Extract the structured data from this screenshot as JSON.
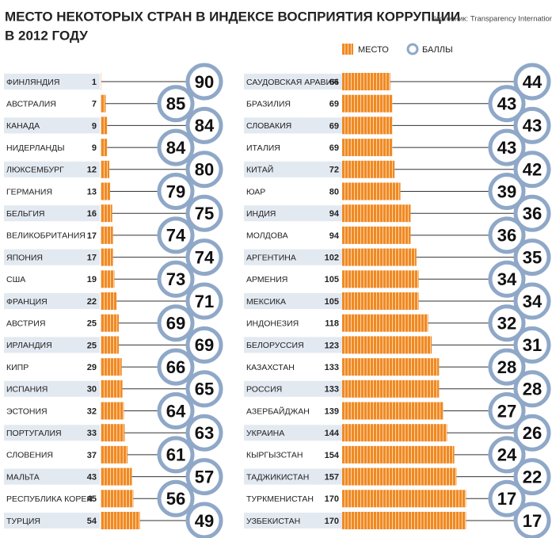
{
  "chart_data": {
    "type": "bar",
    "title": [
      "МЕСТО НЕКОТОРЫХ СТРАН В ИНДЕКСЕ ВОСПРИЯТИЯ КОРРУПЦИИ",
      "В 2012 ГОДУ"
    ],
    "source": "Источник: Transparency International",
    "categories": [
      "ФИНЛЯНДИЯ",
      "АВСТРАЛИЯ",
      "КАНАДА",
      "НИДЕРЛАНДЫ",
      "ЛЮКСЕМБУРГ",
      "ГЕРМАНИЯ",
      "БЕЛЬГИЯ",
      "ВЕЛИКОБРИТАНИЯ",
      "ЯПОНИЯ",
      "США",
      "ФРАНЦИЯ",
      "АВСТРИЯ",
      "ИРЛАНДИЯ",
      "КИПР",
      "ИСПАНИЯ",
      "ЭСТОНИЯ",
      "ПОРТУГАЛИЯ",
      "СЛОВЕНИЯ",
      "МАЛЬТА",
      "РЕСПУБЛИКА КОРЕЯ",
      "ТУРЦИЯ",
      "САУДОВСКАЯ АРАВИЯ",
      "БРАЗИЛИЯ",
      "СЛОВАКИЯ",
      "ИТАЛИЯ",
      "КИТАЙ",
      "ЮАР",
      "ИНДИЯ",
      "МОЛДОВА",
      "АРГЕНТИНА",
      "АРМЕНИЯ",
      "МЕКСИКА",
      "ИНДОНЕЗИЯ",
      "БЕЛОРУССИЯ",
      "КАЗАХСТАН",
      "РОССИЯ",
      "АЗЕРБАЙДЖАН",
      "УКРАИНА",
      "КЫРГЫЗСТАН",
      "ТАДЖИКИСТАН",
      "ТУРКМЕНИСТАН",
      "УЗБЕКИСТАН"
    ],
    "series": [
      {
        "name": "МЕСТО",
        "color": "#f08a24",
        "values": [
          1,
          7,
          9,
          9,
          12,
          13,
          16,
          17,
          17,
          19,
          22,
          25,
          25,
          29,
          30,
          32,
          33,
          37,
          43,
          45,
          54,
          66,
          69,
          69,
          69,
          72,
          80,
          94,
          94,
          102,
          105,
          105,
          118,
          123,
          133,
          133,
          139,
          144,
          154,
          157,
          170,
          170
        ]
      },
      {
        "name": "БАЛЛЫ",
        "color": "#8fa8c8",
        "values": [
          90,
          85,
          84,
          84,
          80,
          79,
          75,
          74,
          74,
          73,
          71,
          69,
          69,
          66,
          65,
          64,
          63,
          61,
          57,
          56,
          49,
          44,
          43,
          43,
          43,
          42,
          39,
          36,
          36,
          35,
          34,
          34,
          32,
          31,
          28,
          28,
          27,
          26,
          24,
          22,
          17,
          17
        ]
      }
    ]
  }
}
